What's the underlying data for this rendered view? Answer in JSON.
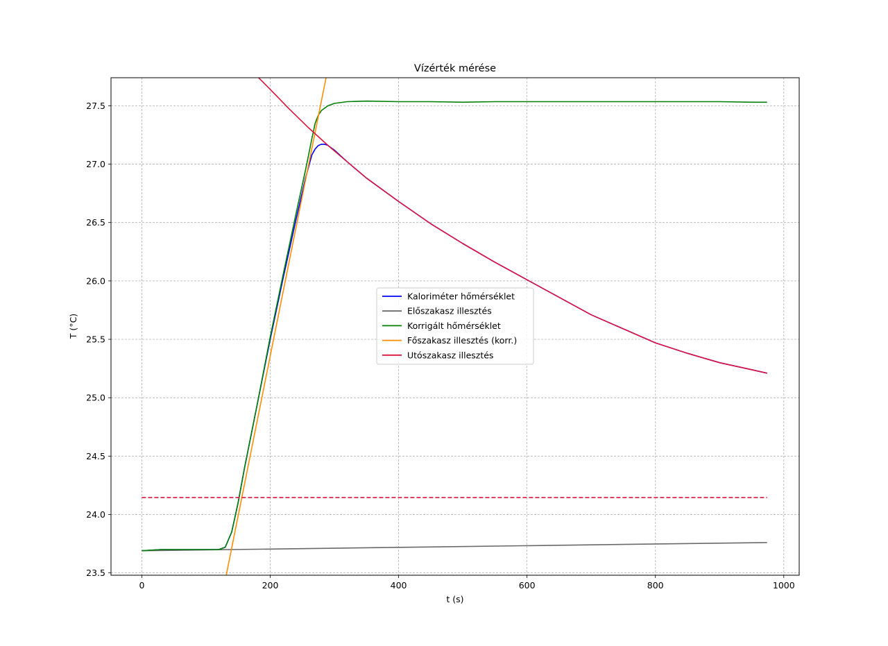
{
  "chart_data": {
    "type": "line",
    "title": "Vízérték mérése",
    "xlabel": "t (s)",
    "ylabel": "T (°C)",
    "xlim": [
      -48,
      1024
    ],
    "ylim": [
      23.48,
      27.74
    ],
    "xticks": [
      0,
      200,
      400,
      600,
      800,
      1000
    ],
    "xtick_labels": [
      "0",
      "200",
      "400",
      "600",
      "800",
      "1000"
    ],
    "yticks": [
      23.5,
      24.0,
      24.5,
      25.0,
      25.5,
      26.0,
      26.5,
      27.0,
      27.5
    ],
    "ytick_labels": [
      "23.5",
      "24.0",
      "24.5",
      "25.0",
      "25.5",
      "26.0",
      "26.5",
      "27.0",
      "27.5"
    ],
    "grid": true,
    "legend_position": "center",
    "series": [
      {
        "name": "Kaloriméter hőmérséklet",
        "color": "#0000ff",
        "style": "solid",
        "x": [
          0,
          30,
          60,
          90,
          120,
          130,
          140,
          150,
          160,
          180,
          200,
          220,
          240,
          255,
          265,
          270,
          275,
          280,
          285,
          290,
          300,
          320,
          350,
          400,
          450,
          500,
          550,
          600,
          650,
          700,
          750,
          800,
          850,
          900,
          950,
          974
        ],
        "y": [
          23.69,
          23.7,
          23.7,
          23.7,
          23.7,
          23.72,
          23.85,
          24.1,
          24.4,
          24.95,
          25.5,
          26.02,
          26.52,
          26.88,
          27.08,
          27.13,
          27.16,
          27.17,
          27.17,
          27.16,
          27.12,
          27.02,
          26.88,
          26.68,
          26.49,
          26.32,
          26.16,
          26.01,
          25.86,
          25.71,
          25.59,
          25.47,
          25.38,
          25.3,
          25.24,
          25.21
        ]
      },
      {
        "name": "Előszakasz illesztés",
        "color": "#696969",
        "style": "solid",
        "x": [
          0,
          974
        ],
        "y": [
          23.69,
          23.76
        ]
      },
      {
        "name": "Korrigált hőmérséklet",
        "color": "#008000",
        "style": "solid",
        "x": [
          0,
          30,
          60,
          90,
          120,
          130,
          140,
          150,
          160,
          180,
          200,
          220,
          240,
          255,
          265,
          270,
          275,
          280,
          290,
          300,
          320,
          350,
          400,
          450,
          500,
          550,
          600,
          650,
          700,
          750,
          800,
          850,
          900,
          950,
          974
        ],
        "y": [
          23.69,
          23.7,
          23.7,
          23.7,
          23.7,
          23.72,
          23.85,
          24.1,
          24.4,
          24.95,
          25.52,
          26.05,
          26.57,
          26.95,
          27.22,
          27.35,
          27.42,
          27.46,
          27.5,
          27.52,
          27.535,
          27.54,
          27.535,
          27.535,
          27.53,
          27.535,
          27.535,
          27.535,
          27.535,
          27.535,
          27.535,
          27.535,
          27.535,
          27.53,
          27.53
        ]
      },
      {
        "name": "Főszakasz illesztés (korr.)",
        "color": "#ff8c00",
        "style": "solid",
        "x": [
          131.5,
          287
        ],
        "y": [
          23.48,
          27.74
        ]
      },
      {
        "name": "Utószakasz illesztés",
        "color": "#dc143c",
        "style": "solid",
        "x": [
          182,
          200,
          230,
          260,
          290,
          320,
          350,
          400,
          450,
          500,
          550,
          600,
          650,
          700,
          750,
          800,
          850,
          900,
          950,
          974
        ],
        "y": [
          27.74,
          27.64,
          27.47,
          27.31,
          27.16,
          27.02,
          26.88,
          26.68,
          26.49,
          26.32,
          26.16,
          26.01,
          25.86,
          25.71,
          25.59,
          25.47,
          25.38,
          25.3,
          25.24,
          25.21
        ]
      },
      {
        "color": "#dc143c",
        "style": "dashed",
        "x": [
          0,
          974
        ],
        "y": [
          24.145,
          24.145
        ]
      }
    ]
  }
}
